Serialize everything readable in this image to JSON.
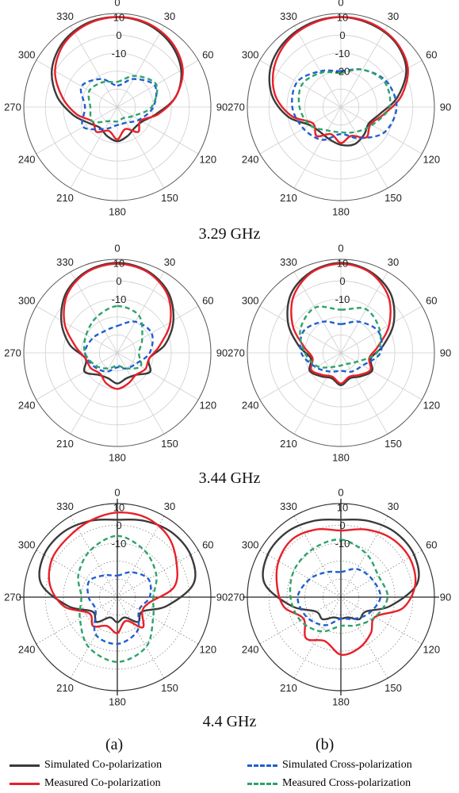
{
  "figure": {
    "freq_labels": [
      "3.29 GHz",
      "3.44 GHz",
      "4.4 GHz"
    ],
    "panel_labels": [
      "(a)",
      "(b)"
    ]
  },
  "legend": [
    {
      "label": "Simulated Co-polarization",
      "color": "#3a3a3a",
      "style": "solid"
    },
    {
      "label": "Simulated Cross-polarization",
      "color": "#1f5fd0",
      "style": "dashed"
    },
    {
      "label": "Measured Co-polarization",
      "color": "#e8202a",
      "style": "solid"
    },
    {
      "label": "Measured Cross-polarization",
      "color": "#2ea36b",
      "style": "dashed"
    }
  ],
  "chart_data": [
    {
      "type": "polar",
      "panel": "(a)",
      "frequency": "3.29 GHz",
      "angle_ticks": [
        0,
        30,
        60,
        90,
        120,
        150,
        180,
        210,
        240,
        270,
        300,
        330
      ],
      "radial_ticks": [
        -10,
        0,
        10
      ],
      "rlim": [
        -40,
        12
      ],
      "style": "solid-grid",
      "series": [
        {
          "name": "Simulated Co-polarization",
          "angles": [
            0,
            20,
            40,
            60,
            80,
            100,
            120,
            140,
            160,
            180,
            200,
            220,
            240,
            260,
            280,
            300,
            320,
            340
          ],
          "values": [
            10,
            9,
            6,
            1,
            -7,
            -18,
            -24,
            -25,
            -23,
            -21,
            -23,
            -25,
            -22,
            -15,
            -6,
            2,
            7,
            9.5
          ]
        },
        {
          "name": "Measured Co-polarization",
          "angles": [
            0,
            20,
            40,
            60,
            80,
            100,
            120,
            140,
            160,
            180,
            200,
            220,
            240,
            260,
            280,
            300,
            320,
            340
          ],
          "values": [
            10,
            9.5,
            7,
            2,
            -7,
            -17,
            -25,
            -22,
            -27,
            -22,
            -26,
            -22,
            -24,
            -17,
            -9,
            0,
            6,
            9
          ]
        },
        {
          "name": "Simulated Cross-polarization",
          "angles": [
            0,
            30,
            60,
            90,
            120,
            150,
            180,
            210,
            240,
            270,
            300,
            330
          ],
          "values": [
            -28,
            -22,
            -16,
            -20,
            -26,
            -30,
            -30,
            -26,
            -18,
            -22,
            -17,
            -22
          ]
        },
        {
          "name": "Measured Cross-polarization",
          "angles": [
            0,
            30,
            60,
            90,
            120,
            150,
            180,
            210,
            240,
            270,
            300,
            330
          ],
          "values": [
            -26,
            -20,
            -15,
            -21,
            -30,
            -33,
            -32,
            -31,
            -24,
            -25,
            -22,
            -24
          ]
        }
      ]
    },
    {
      "type": "polar",
      "panel": "(b)",
      "frequency": "3.29 GHz",
      "angle_ticks": [
        0,
        30,
        60,
        90,
        120,
        150,
        180,
        210,
        240,
        270,
        300,
        330
      ],
      "radial_ticks": [
        -20,
        -10,
        0,
        10
      ],
      "rlim": [
        -40,
        12
      ],
      "style": "solid-grid",
      "series": [
        {
          "name": "Simulated Co-polarization",
          "angles": [
            0,
            20,
            40,
            60,
            80,
            100,
            120,
            140,
            160,
            180,
            200,
            220,
            240,
            260,
            280,
            300,
            320,
            340
          ],
          "values": [
            10,
            9,
            7,
            2,
            -8,
            -18,
            -22,
            -20,
            -18,
            -19,
            -21,
            -22,
            -20,
            -10,
            -1,
            5,
            8,
            9.5
          ]
        },
        {
          "name": "Measured Co-polarization",
          "angles": [
            0,
            20,
            40,
            60,
            80,
            100,
            120,
            140,
            160,
            180,
            200,
            220,
            240,
            260,
            280,
            300,
            320,
            340
          ],
          "values": [
            10,
            9.5,
            7.5,
            3,
            -6,
            -16,
            -21,
            -18,
            -23,
            -20,
            -24,
            -19,
            -22,
            -12,
            -3,
            3,
            7,
            9
          ]
        },
        {
          "name": "Simulated Cross-polarization",
          "angles": [
            0,
            30,
            60,
            90,
            120,
            150,
            180,
            210,
            240,
            270,
            300,
            330
          ],
          "values": [
            -20,
            -16,
            -11,
            -9,
            -12,
            -20,
            -25,
            -19,
            -16,
            -13,
            -12,
            -17
          ]
        },
        {
          "name": "Measured Cross-polarization",
          "angles": [
            0,
            30,
            60,
            90,
            120,
            150,
            180,
            210,
            240,
            270,
            300,
            330
          ],
          "values": [
            -21,
            -16,
            -12,
            -13,
            -20,
            -24,
            -26,
            -25,
            -20,
            -17,
            -15,
            -18
          ]
        }
      ]
    },
    {
      "type": "polar",
      "panel": "(a)",
      "frequency": "3.44 GHz",
      "angle_ticks": [
        0,
        30,
        60,
        90,
        120,
        150,
        180,
        210,
        240,
        270,
        300,
        330
      ],
      "radial_ticks": [
        -10,
        0,
        10
      ],
      "rlim": [
        -40,
        12
      ],
      "style": "solid-grid",
      "series": [
        {
          "name": "Simulated Co-polarization",
          "angles": [
            0,
            20,
            40,
            60,
            80,
            100,
            120,
            140,
            160,
            180,
            200,
            220,
            240,
            260,
            280,
            300,
            320,
            340
          ],
          "values": [
            10,
            8.5,
            4,
            -4,
            -13,
            -22,
            -19,
            -24,
            -25,
            -23,
            -25,
            -24,
            -19,
            -22,
            -13,
            -4,
            4,
            8.5
          ]
        },
        {
          "name": "Measured Co-polarization",
          "angles": [
            0,
            20,
            40,
            60,
            80,
            100,
            120,
            140,
            160,
            180,
            200,
            220,
            240,
            260,
            280,
            300,
            320,
            340
          ],
          "values": [
            9.5,
            8,
            3,
            -6,
            -16,
            -22,
            -22,
            -24,
            -22,
            -20,
            -22,
            -25,
            -23,
            -22,
            -16,
            -6,
            3,
            8
          ]
        },
        {
          "name": "Simulated Cross-polarization",
          "angles": [
            0,
            30,
            60,
            90,
            120,
            150,
            180,
            210,
            240,
            270,
            300,
            330
          ],
          "values": [
            -25,
            -20,
            -18,
            -22,
            -28,
            -30,
            -32,
            -28,
            -25,
            -22,
            -24,
            -26
          ]
        },
        {
          "name": "Measured Cross-polarization",
          "angles": [
            0,
            30,
            60,
            90,
            120,
            150,
            180,
            210,
            240,
            270,
            300,
            330
          ],
          "values": [
            -14,
            -16,
            -24,
            -28,
            -25,
            -30,
            -33,
            -30,
            -26,
            -22,
            -20,
            -17
          ]
        }
      ]
    },
    {
      "type": "polar",
      "panel": "(b)",
      "frequency": "3.44 GHz",
      "angle_ticks": [
        0,
        30,
        60,
        90,
        120,
        150,
        180,
        210,
        240,
        270,
        300,
        330
      ],
      "radial_ticks": [
        -10,
        0,
        10
      ],
      "rlim": [
        -40,
        12
      ],
      "style": "solid-grid",
      "series": [
        {
          "name": "Simulated Co-polarization",
          "angles": [
            0,
            20,
            40,
            60,
            80,
            100,
            120,
            140,
            160,
            180,
            200,
            220,
            240,
            260,
            280,
            300,
            320,
            340
          ],
          "values": [
            10,
            8,
            3,
            -6,
            -16,
            -23,
            -20,
            -23,
            -25,
            -22,
            -25,
            -23,
            -20,
            -23,
            -16,
            -6,
            3,
            8
          ]
        },
        {
          "name": "Measured Co-polarization",
          "angles": [
            0,
            20,
            40,
            60,
            80,
            100,
            120,
            140,
            160,
            180,
            200,
            220,
            240,
            260,
            280,
            300,
            320,
            340
          ],
          "values": [
            9.5,
            7.5,
            1,
            -9,
            -19,
            -24,
            -21,
            -24,
            -26,
            -23,
            -26,
            -24,
            -21,
            -24,
            -19,
            -9,
            1,
            7.5
          ]
        },
        {
          "name": "Simulated Cross-polarization",
          "angles": [
            0,
            30,
            60,
            90,
            120,
            150,
            180,
            210,
            240,
            270,
            300,
            330
          ],
          "values": [
            -24,
            -20,
            -16,
            -18,
            -26,
            -28,
            -30,
            -28,
            -24,
            -18,
            -16,
            -20
          ]
        },
        {
          "name": "Measured Cross-polarization",
          "angles": [
            0,
            30,
            60,
            90,
            120,
            150,
            180,
            210,
            240,
            270,
            300,
            330
          ],
          "values": [
            -16,
            -12,
            -15,
            -20,
            -30,
            -33,
            -33,
            -31,
            -25,
            -20,
            -14,
            -11
          ]
        }
      ]
    },
    {
      "type": "polar",
      "panel": "(a)",
      "frequency": "4.4 GHz",
      "angle_ticks": [
        0,
        30,
        60,
        90,
        120,
        150,
        180,
        210,
        240,
        270,
        300,
        330
      ],
      "radial_ticks": [
        -10,
        0,
        10
      ],
      "rlim": [
        -40,
        12
      ],
      "style": "dotted-grid",
      "series": [
        {
          "name": "Simulated Co-polarization",
          "angles": [
            0,
            20,
            40,
            60,
            80,
            100,
            120,
            140,
            160,
            180,
            200,
            220,
            240,
            260,
            280,
            300,
            320,
            340
          ],
          "values": [
            3,
            5,
            7,
            7,
            3,
            -12,
            -24,
            -22,
            -28,
            -26,
            -28,
            -22,
            -24,
            -12,
            3,
            7,
            7,
            5
          ]
        },
        {
          "name": "Measured Co-polarization",
          "angles": [
            0,
            20,
            40,
            60,
            80,
            100,
            120,
            140,
            160,
            180,
            200,
            220,
            240,
            260,
            280,
            300,
            320,
            340
          ],
          "values": [
            7,
            7,
            4,
            -2,
            -8,
            -22,
            -24,
            -18,
            -26,
            -20,
            -23,
            -19,
            -22,
            -10,
            -2,
            2,
            3,
            5
          ]
        },
        {
          "name": "Simulated Cross-polarization",
          "angles": [
            0,
            30,
            60,
            90,
            120,
            150,
            180,
            210,
            240,
            270,
            300,
            330
          ],
          "values": [
            -28,
            -24,
            -20,
            -22,
            -26,
            -18,
            -14,
            -16,
            -26,
            -24,
            -22,
            -26
          ]
        },
        {
          "name": "Measured Cross-polarization",
          "angles": [
            0,
            30,
            60,
            90,
            120,
            150,
            180,
            210,
            240,
            270,
            300,
            330
          ],
          "values": [
            -6,
            -10,
            -15,
            -20,
            -17,
            -8,
            -4,
            -8,
            -16,
            -20,
            -15,
            -10
          ]
        }
      ]
    },
    {
      "type": "polar",
      "panel": "(b)",
      "frequency": "4.4 GHz",
      "angle_ticks": [
        0,
        30,
        60,
        90,
        120,
        150,
        180,
        210,
        240,
        270,
        300,
        330
      ],
      "radial_ticks": [
        -10,
        0,
        10
      ],
      "rlim": [
        -40,
        12
      ],
      "style": "dotted-grid",
      "series": [
        {
          "name": "Simulated Co-polarization",
          "angles": [
            0,
            20,
            40,
            60,
            80,
            100,
            120,
            140,
            160,
            180,
            200,
            220,
            240,
            260,
            280,
            300,
            320,
            340
          ],
          "values": [
            3,
            5,
            7,
            7,
            3,
            -12,
            -24,
            -24,
            -28,
            -28,
            -28,
            -24,
            -24,
            -12,
            3,
            7,
            7,
            5
          ]
        },
        {
          "name": "Measured Co-polarization",
          "angles": [
            0,
            20,
            40,
            60,
            80,
            100,
            120,
            140,
            160,
            180,
            200,
            220,
            240,
            260,
            280,
            300,
            320,
            340
          ],
          "values": [
            -3,
            0,
            3,
            4,
            2,
            -5,
            -18,
            -14,
            -10,
            -8,
            -14,
            -10,
            -16,
            -8,
            -4,
            0,
            2,
            0
          ]
        },
        {
          "name": "Simulated Cross-polarization",
          "angles": [
            0,
            30,
            60,
            90,
            120,
            150,
            180,
            210,
            240,
            270,
            300,
            330
          ],
          "values": [
            -26,
            -22,
            -20,
            -18,
            -22,
            -26,
            -28,
            -22,
            -18,
            -16,
            -20,
            -24
          ]
        },
        {
          "name": "Measured Cross-polarization",
          "angles": [
            0,
            30,
            60,
            90,
            120,
            150,
            180,
            210,
            240,
            270,
            300,
            330
          ],
          "values": [
            -8,
            -12,
            -16,
            -14,
            -18,
            -22,
            -24,
            -18,
            -14,
            -12,
            -10,
            -9
          ]
        }
      ]
    }
  ]
}
